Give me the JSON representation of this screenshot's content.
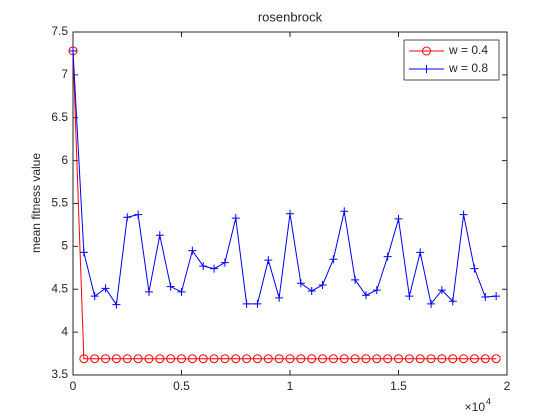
{
  "chart_data": {
    "type": "line",
    "title": "rosenbrock",
    "y_label": "mean fitness value",
    "x_multiplier": "×10",
    "x_multiplier_exp": "4",
    "x": [
      0,
      0.05,
      0.1,
      0.15,
      0.2,
      0.25,
      0.3,
      0.35,
      0.4,
      0.45,
      0.5,
      0.55,
      0.6,
      0.65,
      0.7,
      0.75,
      0.8,
      0.85,
      0.9,
      0.95,
      1.0,
      1.05,
      1.1,
      1.15,
      1.2,
      1.25,
      1.3,
      1.35,
      1.4,
      1.45,
      1.5,
      1.55,
      1.6,
      1.65,
      1.7,
      1.75,
      1.8,
      1.85,
      1.9,
      1.95
    ],
    "series": [
      {
        "name": "w = 0.4",
        "color": "#ff0000",
        "marker": "circle",
        "values": [
          7.28,
          3.69,
          3.69,
          3.69,
          3.69,
          3.69,
          3.69,
          3.69,
          3.69,
          3.69,
          3.69,
          3.69,
          3.69,
          3.69,
          3.69,
          3.69,
          3.69,
          3.69,
          3.69,
          3.69,
          3.69,
          3.69,
          3.69,
          3.69,
          3.69,
          3.69,
          3.69,
          3.69,
          3.69,
          3.69,
          3.69,
          3.69,
          3.69,
          3.69,
          3.69,
          3.69,
          3.69,
          3.69,
          3.69,
          3.69
        ]
      },
      {
        "name": "w = 0.8",
        "color": "#0000ff",
        "marker": "plus",
        "values": [
          7.28,
          4.93,
          4.42,
          4.51,
          4.32,
          5.34,
          5.37,
          4.47,
          5.13,
          4.53,
          4.47,
          4.95,
          4.77,
          4.74,
          4.81,
          5.33,
          4.33,
          4.33,
          4.84,
          4.4,
          5.38,
          4.57,
          4.48,
          4.55,
          4.85,
          5.41,
          4.61,
          4.43,
          4.49,
          4.88,
          5.32,
          4.42,
          4.93,
          4.33,
          4.49,
          4.36,
          5.37,
          4.74,
          4.41,
          4.42
        ]
      }
    ],
    "xlim": [
      0,
      2
    ],
    "xticks": [
      0,
      0.5,
      1,
      1.5,
      2
    ],
    "ylim": [
      3.5,
      7.5
    ],
    "yticks": [
      3.5,
      4,
      4.5,
      5,
      5.5,
      6,
      6.5,
      7,
      7.5
    ],
    "legend": "top-right"
  }
}
